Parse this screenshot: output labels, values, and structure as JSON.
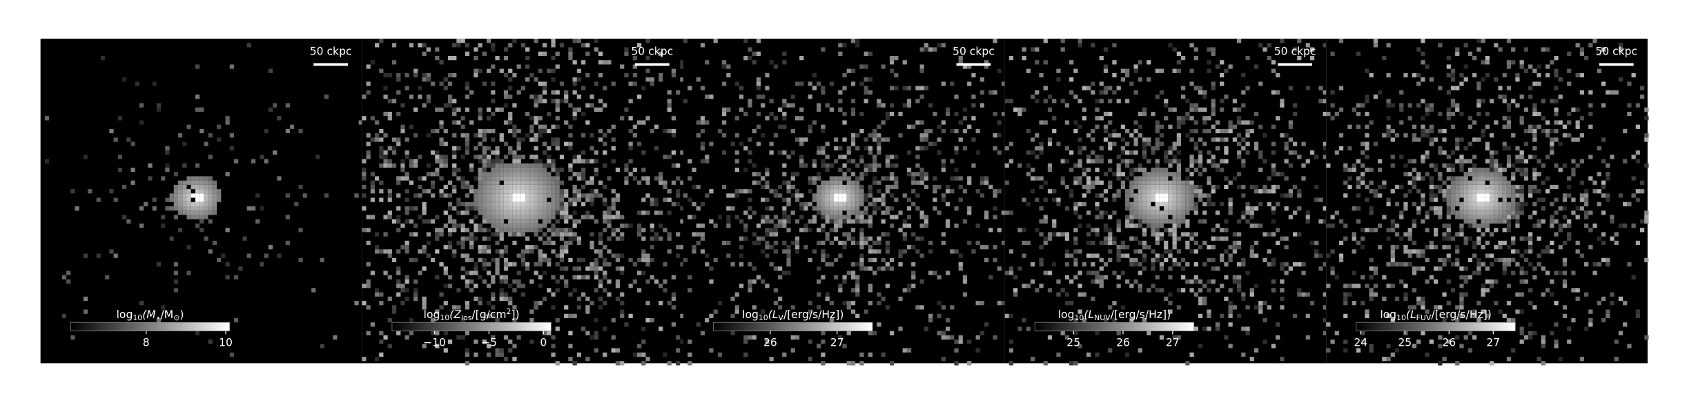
{
  "chart_data": [
    {
      "type": "image",
      "scalebar_label": "50 ckpc",
      "background": "#000000",
      "colorbar": {
        "label": [
          {
            "text": "log"
          },
          {
            "text": "10",
            "sub": true
          },
          {
            "text": "(M",
            "italic": true
          },
          {
            "text": "⋆",
            "sub": true
          },
          {
            "text": "/M"
          },
          {
            "text": "⊙",
            "sub": true
          },
          {
            "text": ")"
          }
        ],
        "xlim": [
          6.1,
          10.1
        ],
        "xticks": [
          8,
          10
        ],
        "cmap": [
          "#000000",
          "#ffffff"
        ]
      }
    },
    {
      "type": "image",
      "scalebar_label": "50 ckpc",
      "background": "#000000",
      "colorbar": {
        "label": [
          {
            "text": "log"
          },
          {
            "text": "10",
            "sub": true
          },
          {
            "text": "(Z",
            "italic": true
          },
          {
            "text": "los",
            "sub": true
          },
          {
            "text": "/[g/cm"
          },
          {
            "text": "2",
            "sup": true
          },
          {
            "text": "])"
          }
        ],
        "xlim": [
          -13.9,
          0.7
        ],
        "xticks": [
          {
            "value": -10,
            "label": "−10"
          },
          {
            "value": -5,
            "label": "−5"
          },
          0
        ],
        "cmap": [
          "#000000",
          "#ffffff"
        ]
      }
    },
    {
      "type": "image",
      "scalebar_label": "50 ckpc",
      "background": "#000000",
      "colorbar": {
        "label": [
          {
            "text": "log"
          },
          {
            "text": "10",
            "sub": true
          },
          {
            "text": "(L",
            "italic": true
          },
          {
            "text": "V",
            "sub": true
          },
          {
            "text": "/[erg/s/Hz])"
          }
        ],
        "xlim": [
          25.15,
          27.53
        ],
        "xticks": [
          26,
          27
        ],
        "cmap": [
          "#000000",
          "#ffffff"
        ]
      }
    },
    {
      "type": "image",
      "scalebar_label": "50 ckpc",
      "background": "#000000",
      "colorbar": {
        "label": [
          {
            "text": "log"
          },
          {
            "text": "10",
            "sub": true
          },
          {
            "text": "(L",
            "italic": true
          },
          {
            "text": "NUV",
            "sub": true
          },
          {
            "text": "/[erg/s/Hz])"
          }
        ],
        "xlim": [
          24.22,
          27.43
        ],
        "xticks": [
          25,
          26,
          27
        ],
        "cmap": [
          "#000000",
          "#ffffff"
        ]
      }
    },
    {
      "type": "image",
      "scalebar_label": "50 ckpc",
      "background": "#000000",
      "colorbar": {
        "label": [
          {
            "text": "log"
          },
          {
            "text": "10",
            "sub": true
          },
          {
            "text": "(L",
            "italic": true
          },
          {
            "text": "FUV",
            "sub": true
          },
          {
            "text": "/[erg/s/Hz])"
          }
        ],
        "xlim": [
          23.9,
          27.5
        ],
        "xticks": [
          24,
          25,
          26,
          27
        ],
        "cmap": [
          "#000000",
          "#ffffff"
        ]
      }
    }
  ]
}
